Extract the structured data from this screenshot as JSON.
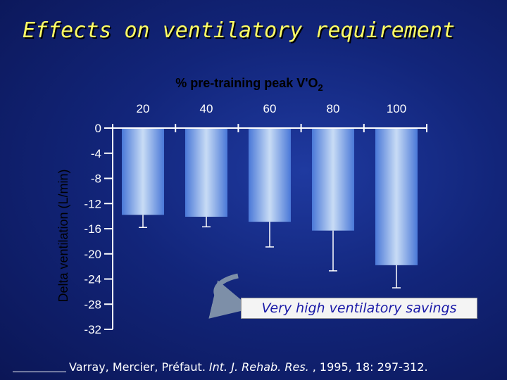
{
  "slide": {
    "title": "Effects on ventilatory requirement",
    "callout": "Very high ventilatory savings",
    "reference": {
      "authors": "Varray, Mercier, Préfaut.",
      "journal": "Int. J. Rehab. Res.",
      "citation": ", 1995, 18: 297-312."
    }
  },
  "colors": {
    "background": "#12257a",
    "title": "#ffff66",
    "bar_light": "#c8dcf5",
    "bar_dark": "#4a78d8",
    "axis": "#ffffff",
    "callout_text": "#1a1aa8"
  },
  "chart_data": {
    "type": "bar",
    "xlabel_parts": [
      "% pre-training peak V'O",
      "2"
    ],
    "ylabel": "Delta ventilation   (L/min)",
    "x_axis_position": "top",
    "categories": [
      "20",
      "40",
      "60",
      "80",
      "100"
    ],
    "values": [
      -13.8,
      -14.1,
      -14.9,
      -16.3,
      -21.8
    ],
    "error_bars": [
      2.0,
      1.6,
      4.0,
      6.4,
      3.6
    ],
    "yticks": [
      "0",
      "-4",
      "-8",
      "-12",
      "-16",
      "-20",
      "-24",
      "-28",
      "-32"
    ],
    "ylim": [
      -32,
      0
    ],
    "grid": false
  }
}
